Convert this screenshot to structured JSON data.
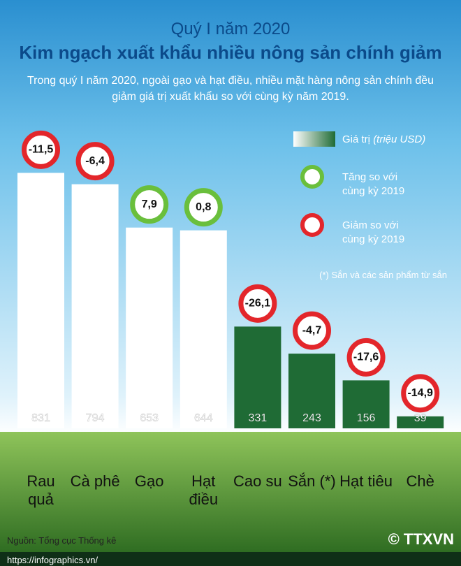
{
  "chart_data": {
    "type": "bar",
    "title": "Quý I năm 2020",
    "subtitle": "Kim ngạch xuất khẩu nhiều nông sản chính giảm",
    "description": "Trong quý I năm 2020, ngoài gạo và hạt điều, nhiều mặt hàng nông sản chính đều giảm giá trị xuất khẩu so với cùng kỳ năm 2019.",
    "categories": [
      "Rau quả",
      "Cà phê",
      "Gạo",
      "Hạt điều",
      "Cao su",
      "Sắn (*)",
      "Hạt tiêu",
      "Chè"
    ],
    "values": [
      831,
      794,
      653,
      644,
      331,
      243,
      156,
      39
    ],
    "colors": [
      "#ffffff",
      "#ffffff",
      "#ffffff",
      "#ffffff",
      "#1f6b35",
      "#1f6b35",
      "#1f6b35",
      "#1f6b35"
    ],
    "changes": [
      -11.5,
      -6.4,
      7.9,
      0.8,
      -26.1,
      -4.7,
      -17.6,
      -14.9
    ],
    "change_labels": [
      "-11,5",
      "-6,4",
      "7,9",
      "0,8",
      "-26,1",
      "-4,7",
      "-17,6",
      "-14,9"
    ],
    "increase_color": "#6abf3c",
    "decrease_color": "#e3262b",
    "ylim": [
      0,
      900
    ],
    "legend": {
      "value": "Giá trị",
      "unit": "(triệu USD)",
      "increase": "Tăng so với cùng kỳ 2019",
      "decrease": "Giảm so với cùng kỳ 2019"
    },
    "note": "(*) Sắn và các sản phẩm từ sắn",
    "source": "Nguồn: Tổng cục Thống kê",
    "url": "https://infographics.vn/",
    "logo": "© TTXVN"
  }
}
